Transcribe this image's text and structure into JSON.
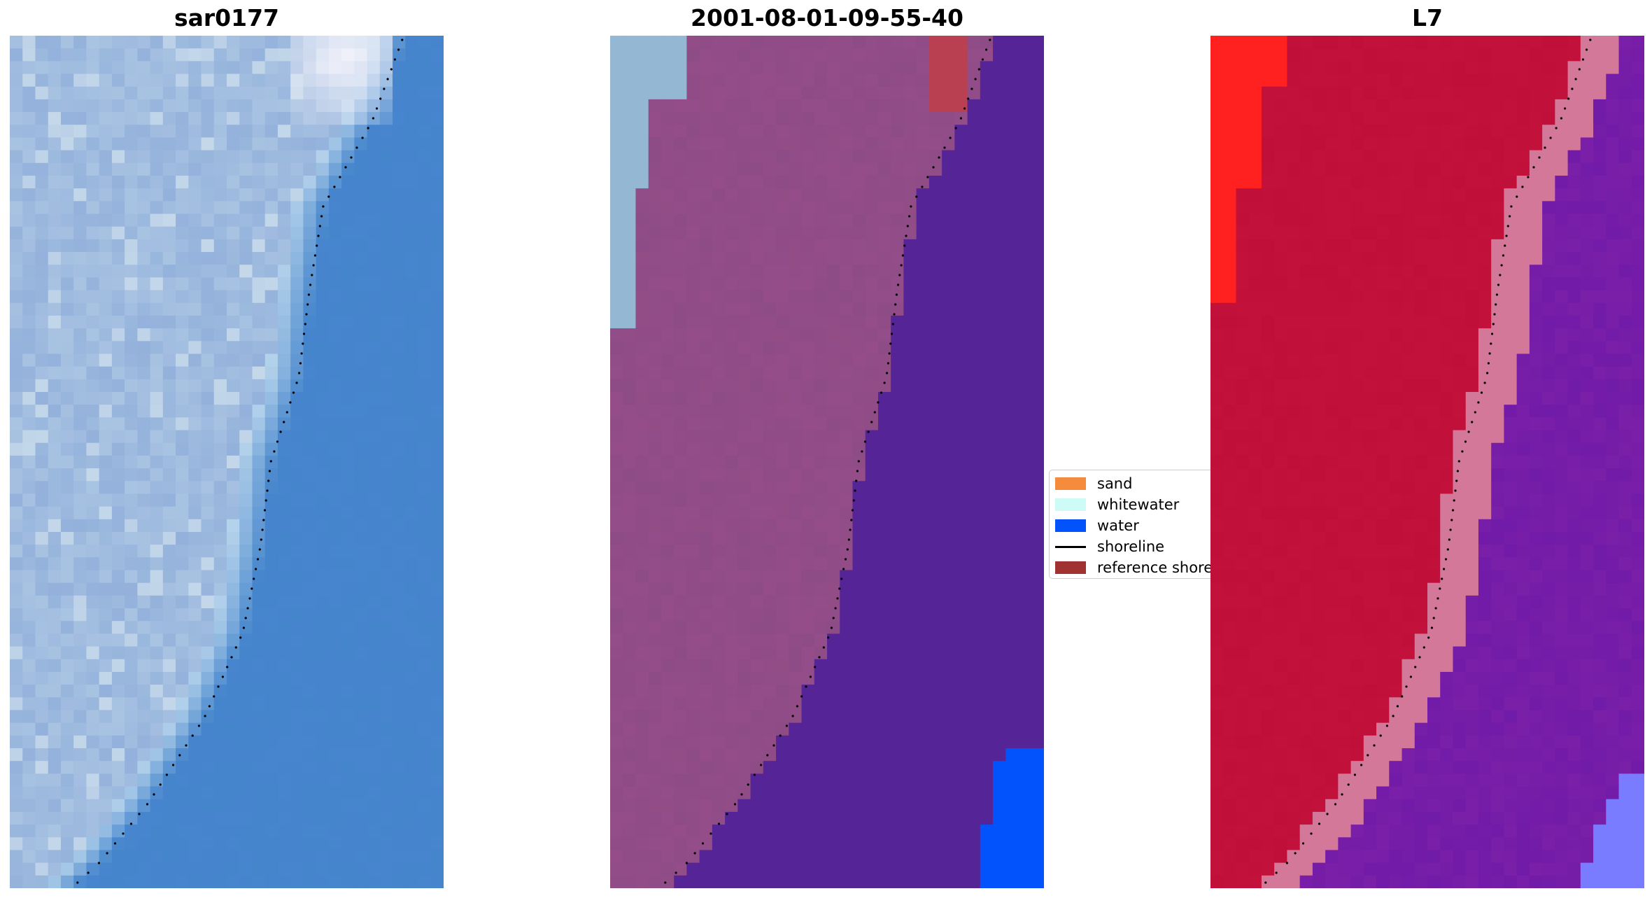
{
  "panels": [
    {
      "title": "sar0177",
      "variant": "rgb"
    },
    {
      "title": "2001-08-01-09-55-40",
      "variant": "classified"
    },
    {
      "title": "L7",
      "variant": "index"
    }
  ],
  "legend": {
    "items": [
      {
        "label": "sand",
        "type": "patch",
        "color": "#f58b3c"
      },
      {
        "label": "whitewater",
        "type": "patch",
        "color": "#ccfcf5"
      },
      {
        "label": "water",
        "type": "patch",
        "color": "#0353fd"
      },
      {
        "label": "shoreline",
        "type": "line",
        "color": "#000000"
      },
      {
        "label": "reference shoreline",
        "type": "patch",
        "color": "#a03232"
      }
    ]
  },
  "colors": {
    "rgb_land": "#a9c3e2",
    "rgb_water": "#4585cc",
    "rgb_glare": "#f2f2fa",
    "class_land": "#8e4c86",
    "class_water": "#552496",
    "class_blue": "#0353fd",
    "class_ww": "#94b7d4",
    "class_ref": "#b84050",
    "idx_land": "#c0103a",
    "idx_land_hi": "#ff2020",
    "idx_water": "#7a1fa8",
    "idx_band": "#d4789a",
    "idx_blue": "#7a7cff"
  }
}
